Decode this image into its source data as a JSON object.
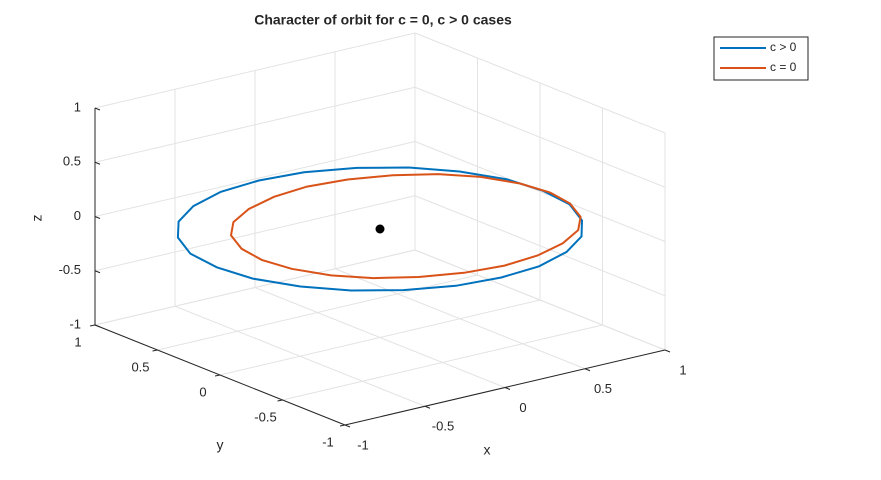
{
  "chart_data": {
    "type": "line3d",
    "title": "Character of orbit for c = 0, c > 0 cases",
    "xlabel": "x",
    "ylabel": "y",
    "zlabel": "z",
    "xlim": [
      -1,
      1
    ],
    "ylim": [
      -1,
      1
    ],
    "zlim": [
      -1,
      1
    ],
    "xticks": [
      -1,
      -0.5,
      0,
      0.5,
      1
    ],
    "yticks": [
      -1,
      -0.5,
      0,
      0.5,
      1
    ],
    "zticks": [
      -1,
      -0.5,
      0,
      0.5,
      1
    ],
    "grid": true,
    "legend": "top-right",
    "series": [
      {
        "name": "c > 0",
        "color": "#0072bd",
        "x": [
          1.02,
          0.99,
          0.88,
          0.72,
          0.51,
          0.26,
          0,
          -0.26,
          -0.51,
          -0.72,
          -0.88,
          -0.99,
          -1.02,
          -0.99,
          -0.88,
          -0.72,
          -0.51,
          -0.26,
          0,
          0.26,
          0.51,
          0.72,
          0.88,
          0.99,
          1.02
        ],
        "y": [
          0,
          0.25,
          0.49,
          0.69,
          0.84,
          0.94,
          0.97,
          0.94,
          0.84,
          0.69,
          0.49,
          0.25,
          0,
          -0.25,
          -0.49,
          -0.69,
          -0.84,
          -0.94,
          -0.97,
          -0.94,
          -0.84,
          -0.69,
          -0.49,
          -0.25,
          0
        ],
        "z": [
          0,
          0,
          0,
          0,
          0,
          0,
          0,
          0,
          0,
          0,
          0,
          0,
          0,
          0,
          0,
          0,
          0,
          0,
          0,
          0,
          0,
          0,
          0,
          0,
          0
        ]
      },
      {
        "name": "c = 0",
        "color": "#d95319",
        "x": [
          1.03,
          1.0,
          0.91,
          0.77,
          0.58,
          0.36,
          0.13,
          -0.1,
          -0.32,
          -0.51,
          -0.65,
          -0.74,
          -0.77,
          -0.74,
          -0.65,
          -0.51,
          -0.32,
          -0.1,
          0.13,
          0.36,
          0.58,
          0.77,
          0.91,
          1.0,
          1.03
        ],
        "y": [
          -0.04,
          0.16,
          0.36,
          0.52,
          0.64,
          0.72,
          0.75,
          0.72,
          0.64,
          0.52,
          0.36,
          0.16,
          -0.04,
          -0.24,
          -0.44,
          -0.6,
          -0.72,
          -0.8,
          -0.83,
          -0.8,
          -0.72,
          -0.6,
          -0.44,
          -0.24,
          -0.04
        ],
        "z": [
          0,
          0,
          0,
          0,
          0,
          0,
          0,
          0,
          0,
          0,
          0,
          0,
          0,
          0,
          0,
          0,
          0,
          0,
          0,
          0,
          0,
          0,
          0,
          0,
          0
        ]
      }
    ],
    "marker": {
      "color": "#000000",
      "x": [
        0
      ],
      "y": [
        0
      ],
      "z": [
        0
      ]
    }
  }
}
